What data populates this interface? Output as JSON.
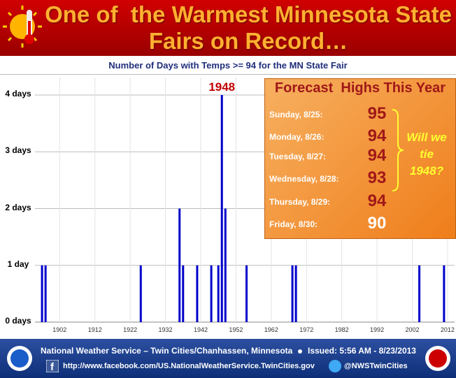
{
  "chart_data": {
    "type": "bar",
    "title": "One of  the Warmest Minnesota State Fairs on Record…",
    "subtitle": "Number of Days with Temps >= 94 for the MN State Fair",
    "x": [
      1897,
      1898,
      1925,
      1936,
      1937,
      1941,
      1945,
      1947,
      1948,
      1949,
      1955,
      1968,
      1969,
      2004,
      2011
    ],
    "values": [
      1,
      1,
      1,
      2,
      1,
      1,
      1,
      1,
      4,
      2,
      1,
      1,
      1,
      1,
      1
    ],
    "color": "#0000cc",
    "xlim": [
      1895,
      2014
    ],
    "xticks": [
      1902,
      1912,
      1922,
      1932,
      1942,
      1952,
      1962,
      1972,
      1982,
      1992,
      2002,
      2012
    ],
    "ylim": [
      0,
      4
    ],
    "yticks": [
      {
        "value": 0,
        "label": "0 days"
      },
      {
        "value": 1,
        "label": "1 day"
      },
      {
        "value": 2,
        "label": "2 days"
      },
      {
        "value": 3,
        "label": "3 days"
      },
      {
        "value": 4,
        "label": "4 days"
      }
    ],
    "grid": true,
    "annotation": {
      "text": "1948",
      "x": 1948
    },
    "forecast": {
      "title": "Forecast  Highs This Year",
      "rows": [
        {
          "label": "Sunday, 8/25:",
          "value": 95
        },
        {
          "label": "Monday, 8/26:",
          "value": 94
        },
        {
          "label": "Tuesday, 8/27:",
          "value": 94
        },
        {
          "label": "Wednesday, 8/28:",
          "value": 93
        },
        {
          "label": "Thursday, 8/29:",
          "value": 94
        },
        {
          "label": "Friday, 8/30:",
          "value": 90
        }
      ],
      "note": "Will we tie 1948?"
    }
  },
  "footer": {
    "office": "National Weather Service – Twin Cities/Chanhassen, Minnesota",
    "issued": "Issued: 5:56 AM - 8/23/2013",
    "url": "http://www.facebook.com/US.NationalWeatherService.TwinCities.gov",
    "twitter": "@NWSTwinCities"
  }
}
